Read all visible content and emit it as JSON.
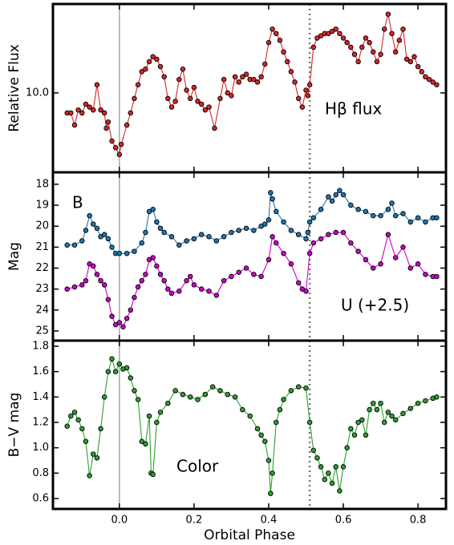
{
  "chart_data": [
    {
      "type": "scatter-line",
      "ylabel": "Relative Flux",
      "log_y": true,
      "xlim": [
        -0.178,
        0.875
      ],
      "ylim": [
        7.5,
        13.8
      ],
      "yticks": [
        {
          "value": 10,
          "label": "10.0"
        }
      ],
      "vlines": [
        {
          "value": 0,
          "style": "solid"
        },
        {
          "value": 0.51,
          "style": "dotted"
        }
      ],
      "series": [
        {
          "name": "Hβ flux",
          "color": "#d62728",
          "x": [
            -0.14,
            -0.13,
            -0.12,
            -0.11,
            -0.1,
            -0.09,
            -0.08,
            -0.07,
            -0.06,
            -0.05,
            -0.04,
            -0.035,
            -0.03,
            -0.02,
            -0.01,
            0.0,
            0.005,
            0.02,
            0.03,
            0.04,
            0.05,
            0.06,
            0.07,
            0.08,
            0.09,
            0.1,
            0.11,
            0.12,
            0.13,
            0.14,
            0.15,
            0.16,
            0.17,
            0.18,
            0.19,
            0.2,
            0.21,
            0.22,
            0.23,
            0.24,
            0.255,
            0.27,
            0.28,
            0.29,
            0.3,
            0.31,
            0.32,
            0.33,
            0.34,
            0.35,
            0.36,
            0.37,
            0.38,
            0.39,
            0.4,
            0.41,
            0.42,
            0.43,
            0.44,
            0.45,
            0.46,
            0.47,
            0.48,
            0.49,
            0.5,
            0.505,
            0.51,
            0.52,
            0.53,
            0.54,
            0.55,
            0.56,
            0.57,
            0.58,
            0.59,
            0.6,
            0.61,
            0.62,
            0.63,
            0.64,
            0.65,
            0.66,
            0.67,
            0.68,
            0.69,
            0.7,
            0.71,
            0.72,
            0.73,
            0.74,
            0.75,
            0.76,
            0.77,
            0.78,
            0.79,
            0.8,
            0.81,
            0.82,
            0.83,
            0.84,
            0.85
          ],
          "values": [
            9.3,
            9.3,
            8.9,
            9.4,
            9.3,
            9.6,
            9.5,
            9.4,
            10.3,
            9.4,
            9.3,
            8.8,
            9.0,
            8.4,
            8.2,
            8.0,
            8.3,
            8.9,
            9.3,
            9.8,
            10.3,
            10.8,
            10.9,
            11.2,
            11.4,
            11.3,
            11.0,
            10.6,
            9.8,
            9.5,
            9.7,
            10.5,
            10.9,
            10.1,
            9.8,
            10.2,
            9.7,
            9.6,
            9.4,
            9.5,
            8.8,
            9.8,
            10.5,
            10.0,
            9.9,
            10.6,
            10.4,
            10.6,
            10.7,
            10.5,
            10.5,
            10.4,
            10.6,
            11.1,
            12.0,
            12.6,
            12.4,
            12.1,
            11.6,
            11.2,
            10.8,
            10.4,
            9.8,
            9.5,
            10.1,
            9.9,
            10.3,
            11.8,
            12.2,
            12.3,
            12.4,
            12.4,
            12.5,
            12.6,
            12.4,
            12.2,
            12.0,
            11.8,
            11.5,
            11.2,
            11.8,
            12.2,
            12.0,
            11.6,
            11.2,
            11.5,
            12.6,
            13.3,
            12.4,
            11.6,
            12.1,
            12.6,
            11.3,
            11.2,
            11.4,
            11.0,
            10.8,
            10.6,
            10.5,
            10.4,
            10.3
          ]
        }
      ]
    },
    {
      "type": "scatter-line",
      "ylabel": "Mag",
      "xlim": [
        -0.178,
        0.875
      ],
      "ylim": [
        25.46,
        17.43
      ],
      "yticks": [
        18,
        19,
        20,
        21,
        22,
        23,
        24,
        25
      ],
      "vlines": [
        {
          "value": 0,
          "style": "solid"
        },
        {
          "value": 0.51,
          "style": "dotted"
        }
      ],
      "series": [
        {
          "name": "B",
          "color": "#1f77b4",
          "x": [
            -0.14,
            -0.12,
            -0.1,
            -0.09,
            -0.08,
            -0.07,
            -0.06,
            -0.05,
            -0.04,
            -0.03,
            -0.02,
            -0.01,
            0.0,
            0.02,
            0.04,
            0.06,
            0.07,
            0.08,
            0.09,
            0.1,
            0.11,
            0.12,
            0.14,
            0.16,
            0.18,
            0.2,
            0.22,
            0.24,
            0.26,
            0.28,
            0.3,
            0.32,
            0.34,
            0.36,
            0.38,
            0.39,
            0.4,
            0.405,
            0.41,
            0.42,
            0.44,
            0.46,
            0.48,
            0.5,
            0.505,
            0.51,
            0.52,
            0.54,
            0.56,
            0.57,
            0.58,
            0.59,
            0.6,
            0.62,
            0.64,
            0.66,
            0.68,
            0.7,
            0.72,
            0.73,
            0.74,
            0.76,
            0.78,
            0.8,
            0.82,
            0.84,
            0.85
          ],
          "values": [
            20.9,
            20.9,
            20.7,
            20.2,
            19.5,
            19.9,
            20.1,
            20.5,
            20.4,
            20.6,
            21.0,
            21.3,
            21.3,
            21.3,
            21.2,
            20.8,
            20.3,
            19.3,
            19.2,
            19.8,
            20.1,
            20.3,
            20.5,
            20.9,
            20.7,
            20.6,
            20.4,
            20.5,
            20.7,
            20.5,
            20.3,
            20.2,
            20.1,
            20.2,
            20.0,
            19.9,
            19.7,
            18.4,
            18.7,
            19.3,
            19.8,
            20.2,
            20.4,
            20.6,
            20.3,
            19.8,
            19.6,
            19.2,
            18.6,
            18.8,
            18.5,
            18.3,
            18.5,
            19.0,
            19.2,
            19.3,
            19.5,
            19.5,
            19.2,
            18.9,
            19.5,
            19.4,
            19.8,
            19.6,
            19.8,
            19.6,
            19.6
          ]
        },
        {
          "name": "U (+2.5)",
          "color": "#cc00cc",
          "x": [
            -0.14,
            -0.12,
            -0.1,
            -0.09,
            -0.08,
            -0.07,
            -0.06,
            -0.05,
            -0.04,
            -0.03,
            -0.02,
            -0.01,
            0.0,
            0.01,
            0.02,
            0.03,
            0.04,
            0.05,
            0.06,
            0.07,
            0.08,
            0.09,
            0.1,
            0.11,
            0.12,
            0.13,
            0.14,
            0.16,
            0.18,
            0.19,
            0.2,
            0.22,
            0.24,
            0.26,
            0.28,
            0.3,
            0.32,
            0.34,
            0.36,
            0.38,
            0.4,
            0.41,
            0.42,
            0.44,
            0.46,
            0.48,
            0.49,
            0.5,
            0.51,
            0.52,
            0.54,
            0.56,
            0.58,
            0.6,
            0.62,
            0.64,
            0.66,
            0.68,
            0.7,
            0.72,
            0.74,
            0.76,
            0.78,
            0.8,
            0.82,
            0.84,
            0.85
          ],
          "values": [
            23.0,
            22.9,
            22.8,
            22.6,
            21.8,
            21.9,
            22.3,
            22.6,
            22.8,
            23.5,
            24.3,
            24.7,
            24.6,
            24.8,
            24.4,
            24.0,
            23.4,
            22.9,
            22.6,
            22.3,
            21.6,
            21.5,
            21.9,
            22.3,
            22.6,
            23.0,
            23.2,
            23.1,
            22.6,
            22.4,
            22.8,
            23.0,
            23.1,
            23.3,
            22.6,
            22.4,
            22.2,
            22.0,
            22.3,
            22.4,
            21.6,
            20.5,
            20.8,
            21.3,
            21.8,
            22.7,
            23.0,
            23.1,
            21.3,
            20.8,
            20.6,
            20.4,
            20.3,
            20.3,
            20.8,
            21.2,
            21.6,
            22.0,
            21.8,
            20.4,
            21.5,
            21.0,
            22.0,
            21.8,
            22.3,
            22.4,
            22.4
          ]
        }
      ]
    },
    {
      "type": "scatter-line",
      "ylabel": "B−V mag",
      "xlabel": "Orbital Phase",
      "xlim": [
        -0.178,
        0.875
      ],
      "ylim": [
        0.518,
        1.844
      ],
      "xticks": [
        {
          "value": 0,
          "label": "0.0"
        },
        0.2,
        0.4,
        0.6,
        0.8
      ],
      "yticks": [
        0.6,
        0.8,
        {
          "value": 1,
          "label": "1.0"
        },
        1.2,
        1.4,
        1.6,
        1.8
      ],
      "vlines": [
        {
          "value": 0,
          "style": "solid"
        },
        {
          "value": 0.51,
          "style": "dotted"
        }
      ],
      "series": [
        {
          "name": "Color",
          "color": "#2ca02c",
          "x": [
            -0.14,
            -0.13,
            -0.12,
            -0.11,
            -0.1,
            -0.09,
            -0.08,
            -0.07,
            -0.06,
            -0.05,
            -0.04,
            -0.03,
            -0.02,
            -0.01,
            0.0,
            0.01,
            0.02,
            0.03,
            0.04,
            0.05,
            0.06,
            0.07,
            0.08,
            0.085,
            0.09,
            0.1,
            0.11,
            0.13,
            0.15,
            0.17,
            0.19,
            0.21,
            0.23,
            0.25,
            0.27,
            0.29,
            0.31,
            0.33,
            0.35,
            0.37,
            0.38,
            0.39,
            0.4,
            0.405,
            0.41,
            0.42,
            0.43,
            0.44,
            0.46,
            0.48,
            0.5,
            0.51,
            0.52,
            0.53,
            0.54,
            0.55,
            0.56,
            0.57,
            0.58,
            0.59,
            0.6,
            0.61,
            0.62,
            0.63,
            0.64,
            0.65,
            0.66,
            0.67,
            0.68,
            0.69,
            0.7,
            0.71,
            0.72,
            0.73,
            0.74,
            0.76,
            0.78,
            0.8,
            0.82,
            0.84,
            0.85
          ],
          "values": [
            1.17,
            1.25,
            1.28,
            1.22,
            1.15,
            1.05,
            0.78,
            0.95,
            0.92,
            1.15,
            1.4,
            1.6,
            1.7,
            1.6,
            1.66,
            1.62,
            1.63,
            1.55,
            1.45,
            1.38,
            1.05,
            1.03,
            1.25,
            0.8,
            0.79,
            1.2,
            1.28,
            1.35,
            1.45,
            1.42,
            1.4,
            1.38,
            1.42,
            1.48,
            1.45,
            1.42,
            1.4,
            1.3,
            1.25,
            1.15,
            1.1,
            1.05,
            0.9,
            0.64,
            0.8,
            1.2,
            1.3,
            1.38,
            1.45,
            1.48,
            1.47,
            1.2,
            0.98,
            0.92,
            0.85,
            0.75,
            0.8,
            0.72,
            0.85,
            0.66,
            0.85,
            1.0,
            1.15,
            1.1,
            1.2,
            1.22,
            1.1,
            1.3,
            1.35,
            1.3,
            1.35,
            1.2,
            1.28,
            1.25,
            1.22,
            1.27,
            1.31,
            1.35,
            1.37,
            1.39,
            1.4
          ]
        }
      ]
    }
  ]
}
